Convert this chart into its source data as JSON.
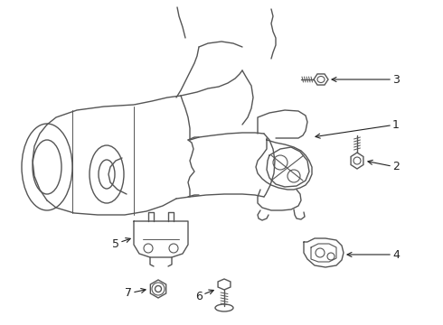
{
  "background_color": "#ffffff",
  "line_color": "#555555",
  "line_width": 1.0,
  "label_fontsize": 9,
  "figsize": [
    4.9,
    3.6
  ],
  "dpi": 100,
  "xlim": [
    0,
    490
  ],
  "ylim": [
    0,
    360
  ]
}
